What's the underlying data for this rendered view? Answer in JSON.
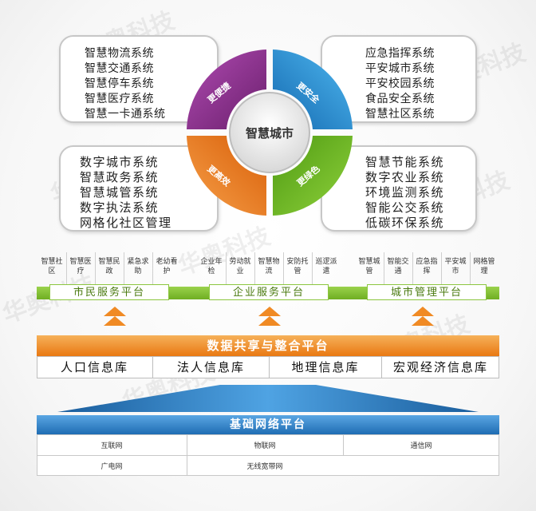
{
  "watermark": "华奥科技",
  "center": {
    "title": "智慧城市"
  },
  "quadrants": [
    {
      "label": "更便捷",
      "color": "#8a2c8c"
    },
    {
      "label": "更安全",
      "color": "#1e8fd8"
    },
    {
      "label": "更高效",
      "color": "#f07a16"
    },
    {
      "label": "更绿色",
      "color": "#6fb21e"
    }
  ],
  "cards": {
    "top_left": [
      "智慧物流系统",
      "智慧交通系统",
      "智慧停车系统",
      "智慧医疗系统",
      "智慧一卡通系统"
    ],
    "top_right": [
      "应急指挥系统",
      "平安城市系统",
      "平安校园系统",
      "食品安全系统",
      "智慧社区系统"
    ],
    "bottom_left": [
      "数字城市系统",
      "智慧政务系统",
      "智慧城管系统",
      "数字执法系统",
      "网格化社区管理"
    ],
    "bottom_right": [
      "智慧节能系统",
      "数字农业系统",
      "环境监测系统",
      "智能公交系统",
      "低碳环保系统"
    ]
  },
  "services": {
    "citizen": [
      "智慧社区",
      "智慧医疗",
      "智慧民政",
      "紧急求助",
      "老幼看护"
    ],
    "enterprise": [
      "企业年检",
      "劳动就业",
      "智慧物流",
      "安防托管",
      "巡逻派遣"
    ],
    "city": [
      "智慧城管",
      "智能交通",
      "应急指挥",
      "平安城市",
      "网格管理"
    ]
  },
  "platforms": {
    "citizen": "市民服务平台",
    "enterprise": "企业服务平台",
    "city": "城市管理平台"
  },
  "data_platform": {
    "title": "数据共享与整合平台"
  },
  "databases": [
    "人口信息库",
    "法人信息库",
    "地理信息库",
    "宏观经济信息库"
  ],
  "network_platform": {
    "title": "基础网络平台"
  },
  "networks": {
    "row1": [
      "互联网",
      "物联网",
      "通信网"
    ],
    "row2": [
      "广电网",
      "无线宽带网"
    ]
  },
  "colors": {
    "orange": "#f08a24",
    "green": "#7cbf2e",
    "blue": "#1a6fb5"
  }
}
